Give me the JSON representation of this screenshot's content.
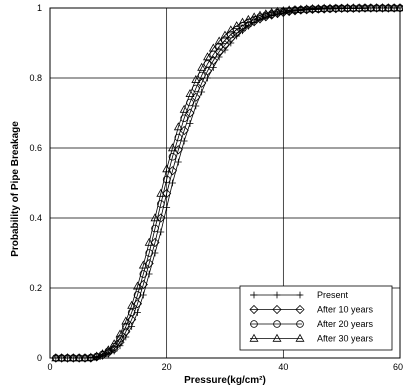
{
  "chart_data": {
    "type": "line",
    "xlabel": "Pressure(kg/cm²)",
    "ylabel": "Probability of Pipe Breakage",
    "xlim": [
      0,
      60
    ],
    "ylim": [
      0,
      1
    ],
    "x_ticks": [
      0,
      20,
      40,
      60
    ],
    "y_ticks": [
      0,
      0.2,
      0.4,
      0.6,
      0.8,
      1
    ],
    "x_tick_labels": [
      "0",
      "20",
      "40",
      "60"
    ],
    "y_tick_labels": [
      "0",
      "0.2",
      "0.4",
      "0.6",
      "0.8",
      "1"
    ],
    "grid": true,
    "legend_position": "bottom-right",
    "series": [
      {
        "name": "Present",
        "marker": "plus",
        "x": [
          1,
          2,
          3,
          4,
          5,
          6,
          7,
          8,
          9,
          10,
          11,
          12,
          13,
          14,
          15,
          16,
          17,
          18,
          19,
          20,
          21,
          22,
          23,
          24,
          25,
          26,
          27,
          28,
          29,
          30,
          31,
          32,
          33,
          34,
          35,
          36,
          37,
          38,
          39,
          40,
          41,
          42,
          43,
          44,
          45,
          46,
          47,
          48,
          49,
          50,
          51,
          52,
          53,
          54,
          55,
          56,
          57,
          58,
          59,
          60
        ],
        "values": [
          0,
          0,
          0,
          0,
          0,
          0,
          0,
          0.002,
          0.006,
          0.012,
          0.02,
          0.035,
          0.06,
          0.09,
          0.13,
          0.18,
          0.24,
          0.3,
          0.36,
          0.43,
          0.5,
          0.56,
          0.62,
          0.67,
          0.72,
          0.76,
          0.8,
          0.83,
          0.86,
          0.88,
          0.9,
          0.92,
          0.935,
          0.948,
          0.958,
          0.966,
          0.973,
          0.978,
          0.982,
          0.986,
          0.989,
          0.991,
          0.993,
          0.994,
          0.995,
          0.996,
          0.997,
          0.997,
          0.998,
          0.998,
          0.999,
          0.999,
          0.999,
          0.999,
          1,
          1,
          1,
          1,
          1,
          1
        ]
      },
      {
        "name": "After 10 years",
        "marker": "diamond",
        "x": [
          1,
          2,
          3,
          4,
          5,
          6,
          7,
          8,
          9,
          10,
          11,
          12,
          13,
          14,
          15,
          16,
          17,
          18,
          19,
          20,
          21,
          22,
          23,
          24,
          25,
          26,
          27,
          28,
          29,
          30,
          31,
          32,
          33,
          34,
          35,
          36,
          37,
          38,
          39,
          40,
          41,
          42,
          43,
          44,
          45,
          46,
          47,
          48,
          49,
          50,
          51,
          52,
          53,
          54,
          55,
          56,
          57,
          58,
          59,
          60
        ],
        "values": [
          0,
          0,
          0,
          0,
          0,
          0,
          0,
          0.003,
          0.008,
          0.015,
          0.025,
          0.045,
          0.075,
          0.11,
          0.155,
          0.21,
          0.27,
          0.33,
          0.4,
          0.47,
          0.535,
          0.595,
          0.65,
          0.7,
          0.745,
          0.785,
          0.82,
          0.85,
          0.875,
          0.895,
          0.913,
          0.928,
          0.94,
          0.952,
          0.961,
          0.969,
          0.975,
          0.98,
          0.984,
          0.987,
          0.99,
          0.992,
          0.994,
          0.995,
          0.996,
          0.997,
          0.997,
          0.998,
          0.998,
          0.999,
          0.999,
          0.999,
          0.999,
          1,
          1,
          1,
          1,
          1,
          1,
          1
        ]
      },
      {
        "name": "After 20 years",
        "marker": "circle",
        "x": [
          1,
          2,
          3,
          4,
          5,
          6,
          7,
          8,
          9,
          10,
          11,
          12,
          13,
          14,
          15,
          16,
          17,
          18,
          19,
          20,
          21,
          22,
          23,
          24,
          25,
          26,
          27,
          28,
          29,
          30,
          31,
          32,
          33,
          34,
          35,
          36,
          37,
          38,
          39,
          40,
          41,
          42,
          43,
          44,
          45,
          46,
          47,
          48,
          49,
          50,
          51,
          52,
          53,
          54,
          55,
          56,
          57,
          58,
          59,
          60
        ],
        "values": [
          0,
          0,
          0,
          0,
          0,
          0,
          0.001,
          0.004,
          0.01,
          0.019,
          0.032,
          0.055,
          0.09,
          0.13,
          0.18,
          0.24,
          0.3,
          0.37,
          0.44,
          0.51,
          0.575,
          0.63,
          0.685,
          0.73,
          0.77,
          0.807,
          0.84,
          0.867,
          0.89,
          0.908,
          0.924,
          0.938,
          0.949,
          0.959,
          0.967,
          0.974,
          0.979,
          0.983,
          0.987,
          0.99,
          0.992,
          0.994,
          0.995,
          0.996,
          0.997,
          0.997,
          0.998,
          0.998,
          0.999,
          0.999,
          0.999,
          0.999,
          1,
          1,
          1,
          1,
          1,
          1,
          1,
          1
        ]
      },
      {
        "name": "After 30 years",
        "marker": "triangle",
        "x": [
          1,
          2,
          3,
          4,
          5,
          6,
          7,
          8,
          9,
          10,
          11,
          12,
          13,
          14,
          15,
          16,
          17,
          18,
          19,
          20,
          21,
          22,
          23,
          24,
          25,
          26,
          27,
          28,
          29,
          30,
          31,
          32,
          33,
          34,
          35,
          36,
          37,
          38,
          39,
          40,
          41,
          42,
          43,
          44,
          45,
          46,
          47,
          48,
          49,
          50,
          51,
          52,
          53,
          54,
          55,
          56,
          57,
          58,
          59,
          60
        ],
        "values": [
          0,
          0,
          0,
          0,
          0,
          0,
          0.002,
          0.005,
          0.012,
          0.023,
          0.04,
          0.068,
          0.105,
          0.15,
          0.205,
          0.265,
          0.33,
          0.4,
          0.47,
          0.54,
          0.6,
          0.66,
          0.71,
          0.755,
          0.795,
          0.83,
          0.86,
          0.885,
          0.905,
          0.922,
          0.937,
          0.949,
          0.959,
          0.967,
          0.974,
          0.979,
          0.983,
          0.987,
          0.99,
          0.992,
          0.994,
          0.995,
          0.996,
          0.997,
          0.998,
          0.998,
          0.999,
          0.999,
          0.999,
          0.999,
          1,
          1,
          1,
          1,
          1,
          1,
          1,
          1,
          1,
          1
        ]
      }
    ]
  }
}
